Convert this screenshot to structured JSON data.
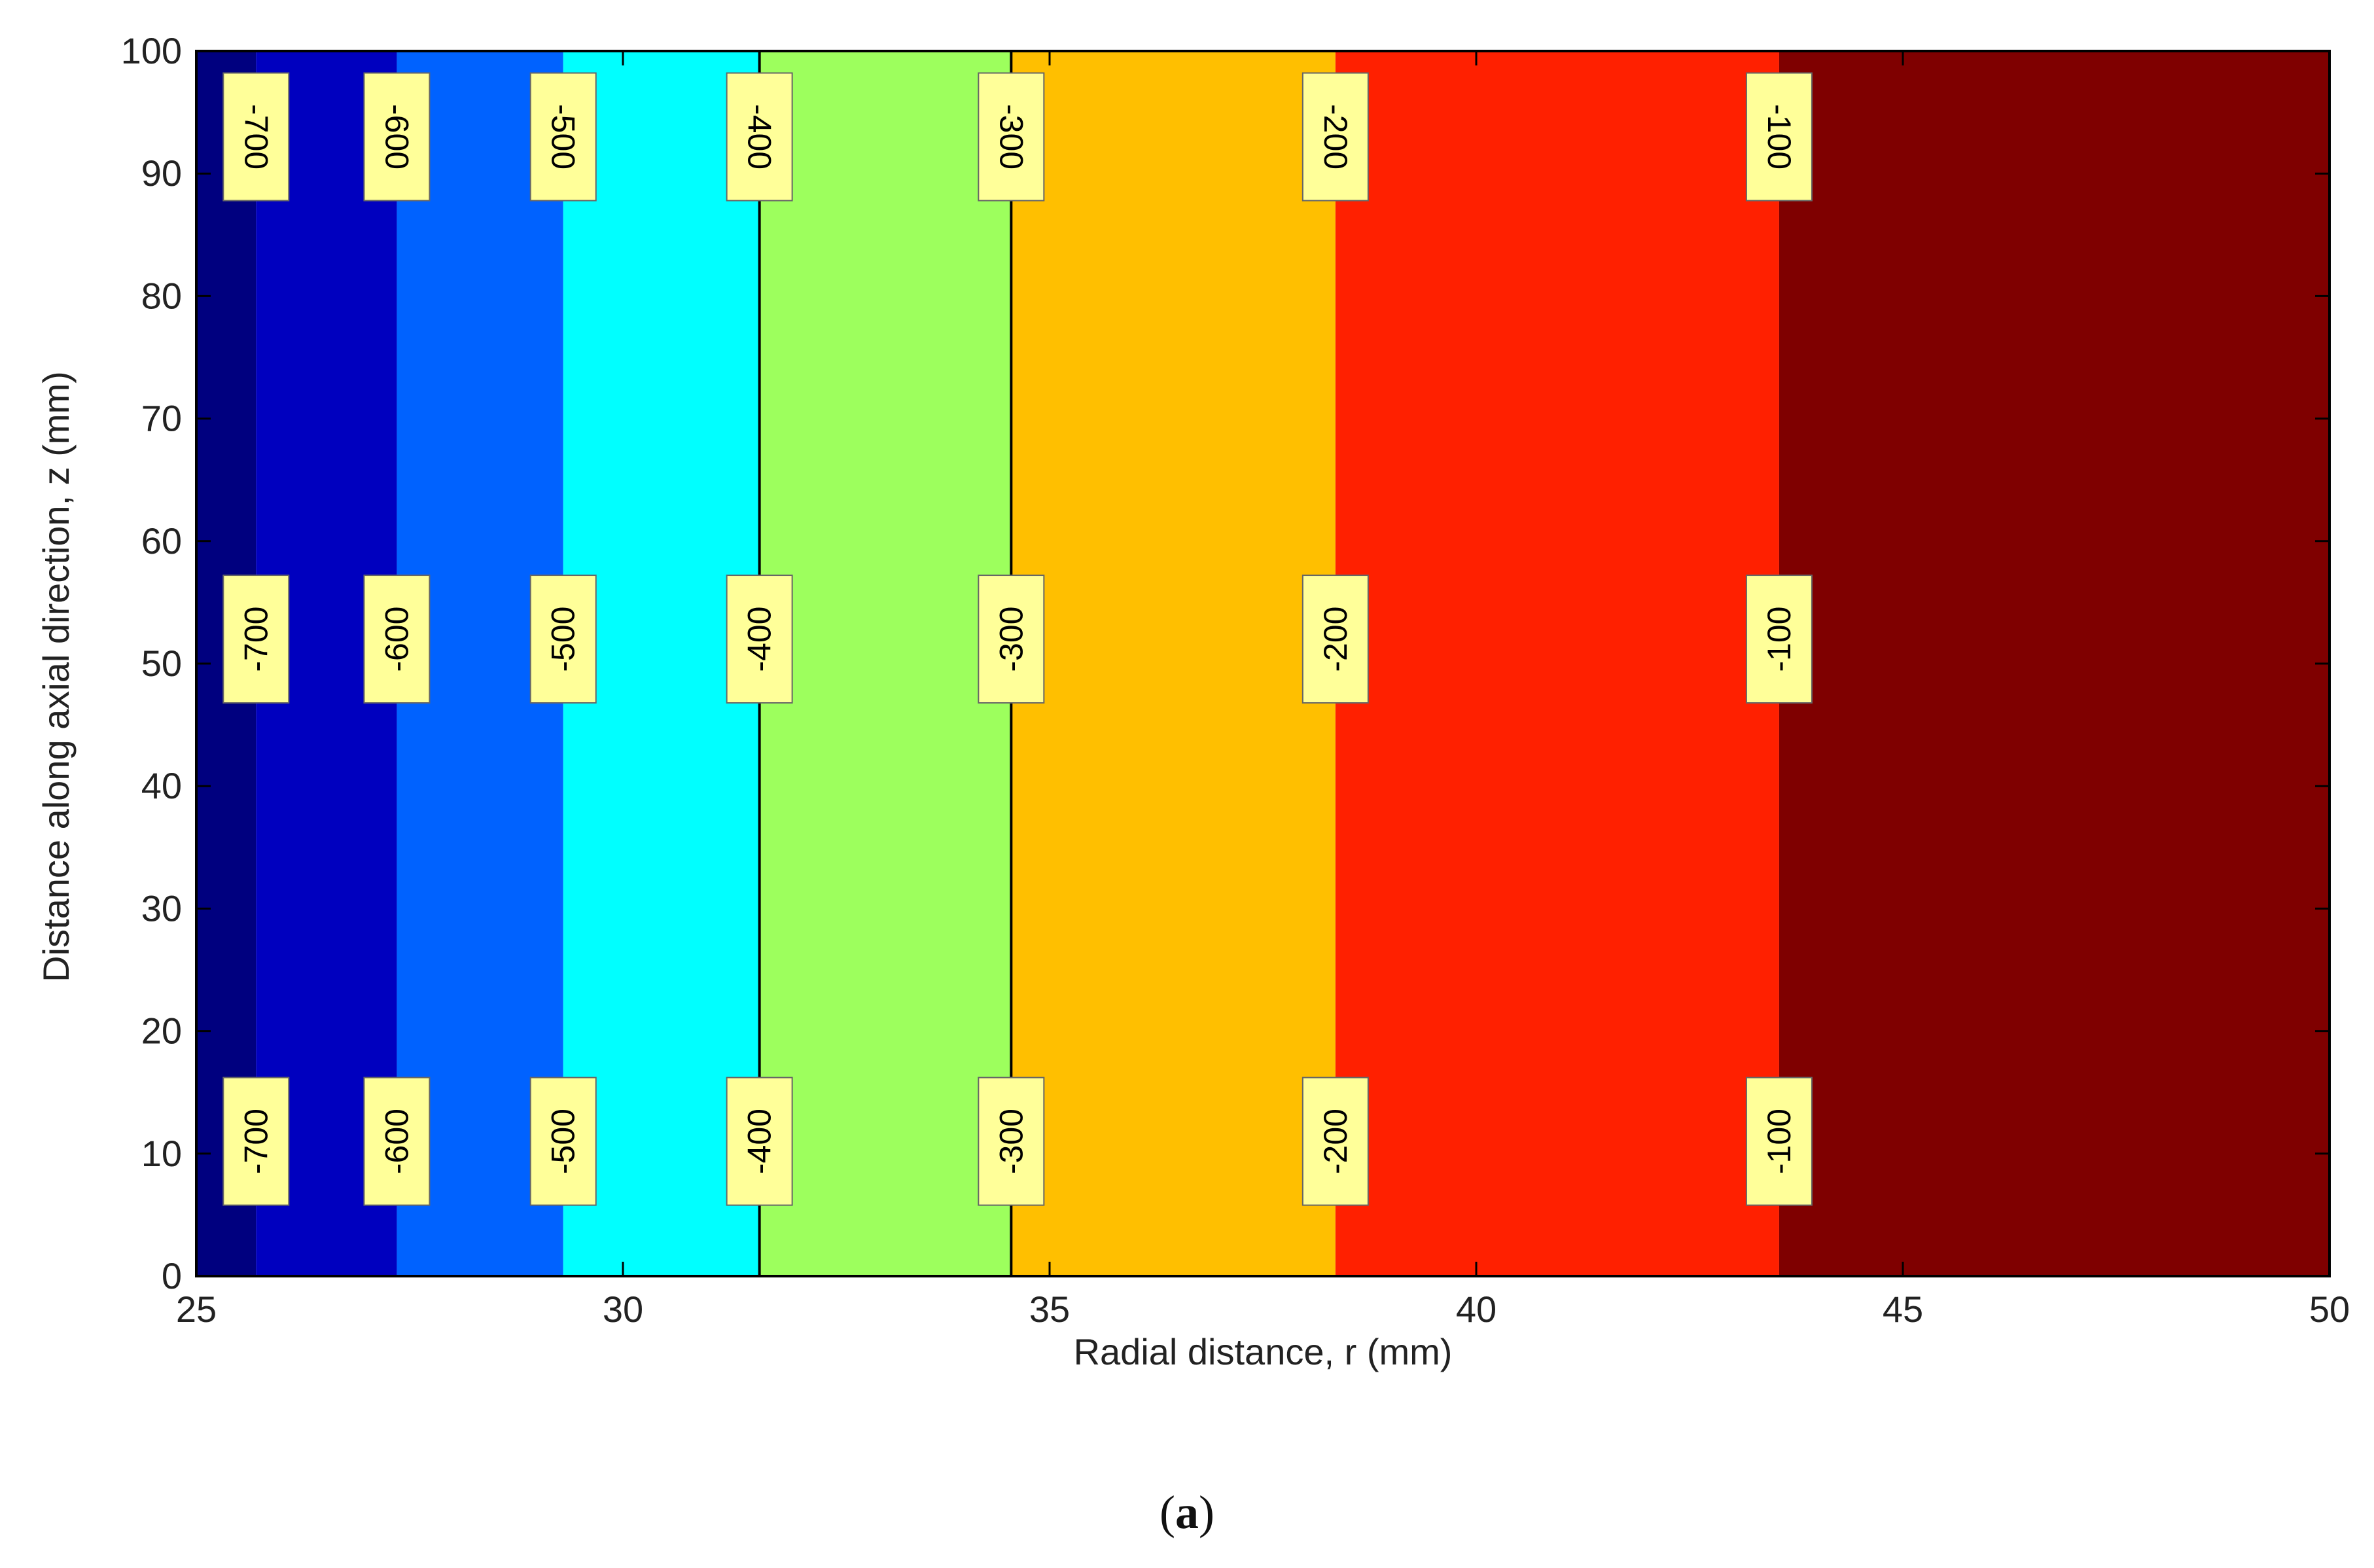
{
  "chart_data": {
    "type": "contour",
    "xlabel": "Radial distance, r (mm)",
    "ylabel": "Distance along axial direction, z (mm)",
    "xlim": [
      25,
      50
    ],
    "ylim": [
      0,
      100
    ],
    "xticks": [
      25,
      30,
      35,
      40,
      45,
      50
    ],
    "yticks": [
      0,
      10,
      20,
      30,
      40,
      50,
      60,
      70,
      80,
      90,
      100
    ],
    "bands": [
      {
        "from": 25.0,
        "to": 25.7,
        "color": "#00007f"
      },
      {
        "from": 25.7,
        "to": 27.35,
        "color": "#0000bf"
      },
      {
        "from": 27.35,
        "to": 29.3,
        "color": "#0062ff"
      },
      {
        "from": 29.3,
        "to": 31.6,
        "color": "#00ffff"
      },
      {
        "from": 31.6,
        "to": 34.55,
        "color": "#9dff5d"
      },
      {
        "from": 34.55,
        "to": 38.35,
        "color": "#ffbf00"
      },
      {
        "from": 38.35,
        "to": 43.55,
        "color": "#ff2000"
      },
      {
        "from": 43.55,
        "to": 50.0,
        "color": "#7f0000"
      }
    ],
    "contour_levels": [
      {
        "level": "-700",
        "r": 25.7
      },
      {
        "level": "-600",
        "r": 27.35
      },
      {
        "level": "-500",
        "r": 29.3
      },
      {
        "level": "-400",
        "r": 31.6
      },
      {
        "level": "-300",
        "r": 34.55
      },
      {
        "level": "-200",
        "r": 38.35
      },
      {
        "level": "-100",
        "r": 43.55
      }
    ],
    "label_z_positions": [
      93,
      52,
      11
    ],
    "label_rotations": [
      90,
      -90,
      -90
    ],
    "contour_lines_visible": [
      "-400",
      "-300"
    ]
  },
  "caption": {
    "open": "(",
    "letter": "a",
    "close": ")"
  }
}
